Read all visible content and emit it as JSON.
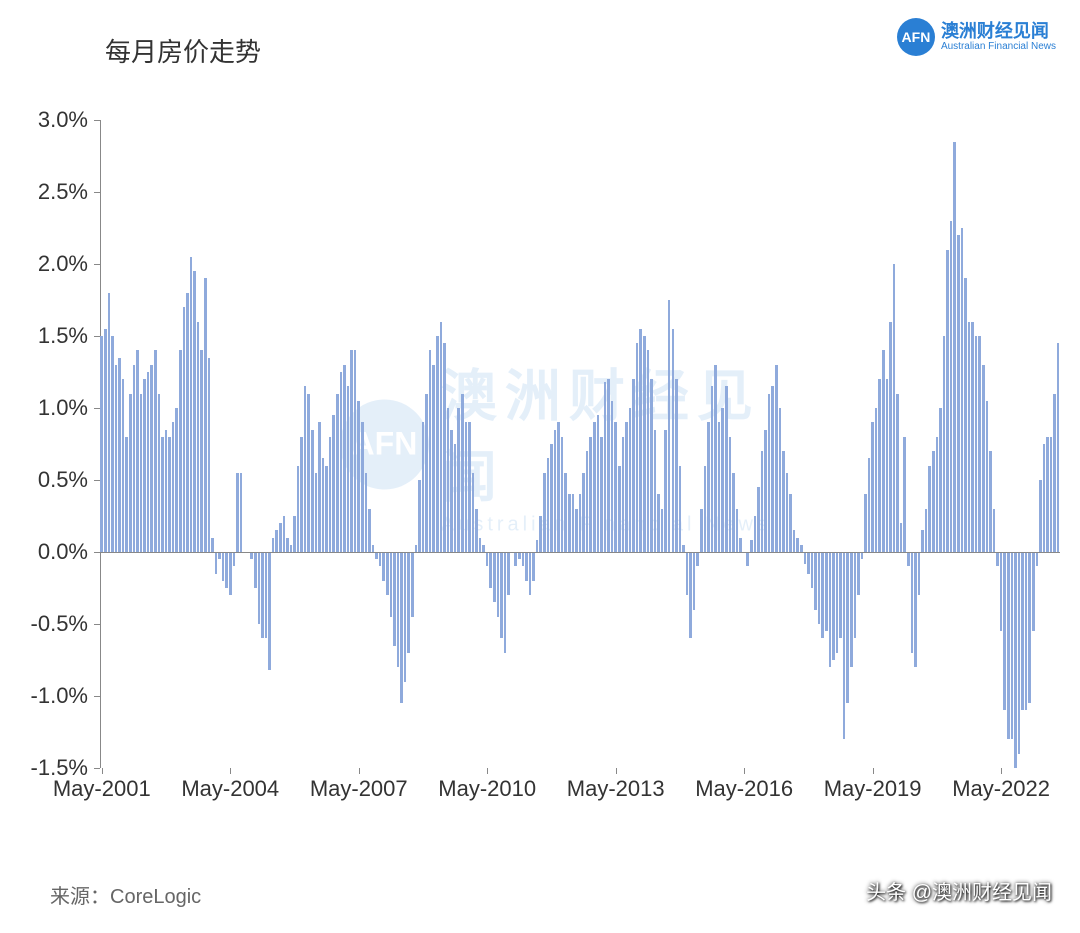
{
  "title": "每月房价走势",
  "logo": {
    "badge": "AFN",
    "cn": "澳洲财经见闻",
    "en": "Australian Financial News"
  },
  "source": "来源：CoreLogic",
  "credit": "头条 @澳洲财经见闻",
  "watermark": {
    "badge": "AFN",
    "cn": "澳洲财经见闻",
    "en": "Australian Financial News"
  },
  "chart": {
    "type": "bar",
    "bar_color": "#8faadc",
    "background_color": "#ffffff",
    "axis_color": "#888888",
    "text_color": "#333333",
    "title_fontsize": 26,
    "tick_fontsize": 22,
    "ylim": [
      -1.5,
      3.0
    ],
    "ytick_step": 0.5,
    "ytick_suffix": "%",
    "yticks": [
      "-1.5%",
      "-1.0%",
      "-0.5%",
      "0.0%",
      "0.5%",
      "1.0%",
      "1.5%",
      "2.0%",
      "2.5%",
      "3.0%"
    ],
    "x_start_year": 2001,
    "x_start_month": 5,
    "x_labels": [
      "May-2001",
      "May-2004",
      "May-2007",
      "May-2010",
      "May-2013",
      "May-2016",
      "May-2019",
      "May-2022"
    ],
    "x_label_every_months": 36,
    "bar_gap_ratio": 0.28,
    "values": [
      1.5,
      1.55,
      1.8,
      1.5,
      1.3,
      1.35,
      1.2,
      0.8,
      1.1,
      1.3,
      1.4,
      1.1,
      1.2,
      1.25,
      1.3,
      1.4,
      1.1,
      0.8,
      0.85,
      0.8,
      0.9,
      1.0,
      1.4,
      1.7,
      1.8,
      2.05,
      1.95,
      1.6,
      1.4,
      1.9,
      1.35,
      0.1,
      -0.15,
      -0.05,
      -0.2,
      -0.25,
      -0.3,
      -0.1,
      0.55,
      0.55,
      0.0,
      0.0,
      -0.05,
      -0.25,
      -0.5,
      -0.6,
      -0.6,
      -0.82,
      0.1,
      0.15,
      0.2,
      0.25,
      0.1,
      0.05,
      0.25,
      0.6,
      0.8,
      1.15,
      1.1,
      0.85,
      0.55,
      0.9,
      0.65,
      0.6,
      0.8,
      0.95,
      1.1,
      1.25,
      1.3,
      1.15,
      1.4,
      1.4,
      1.05,
      0.9,
      0.55,
      0.3,
      0.05,
      -0.05,
      -0.1,
      -0.2,
      -0.3,
      -0.45,
      -0.65,
      -0.8,
      -1.05,
      -0.9,
      -0.7,
      -0.45,
      0.05,
      0.5,
      0.9,
      1.1,
      1.4,
      1.3,
      1.5,
      1.6,
      1.45,
      1.0,
      0.85,
      0.75,
      1.0,
      1.1,
      0.9,
      0.9,
      0.55,
      0.3,
      0.1,
      0.05,
      -0.1,
      -0.25,
      -0.35,
      -0.45,
      -0.6,
      -0.7,
      -0.3,
      0.0,
      -0.1,
      -0.05,
      -0.1,
      -0.2,
      -0.3,
      -0.2,
      0.08,
      0.25,
      0.55,
      0.65,
      0.75,
      0.85,
      0.9,
      0.8,
      0.55,
      0.4,
      0.4,
      0.3,
      0.4,
      0.55,
      0.7,
      0.8,
      0.9,
      0.95,
      0.8,
      1.18,
      1.2,
      1.05,
      0.9,
      0.6,
      0.8,
      0.9,
      1.0,
      1.2,
      1.45,
      1.55,
      1.5,
      1.4,
      1.2,
      0.85,
      0.4,
      0.3,
      0.85,
      1.75,
      1.55,
      1.2,
      0.6,
      0.05,
      -0.3,
      -0.6,
      -0.4,
      -0.1,
      0.3,
      0.6,
      0.9,
      1.15,
      1.3,
      0.9,
      1.0,
      1.15,
      0.8,
      0.55,
      0.3,
      0.1,
      0.0,
      -0.1,
      0.08,
      0.25,
      0.45,
      0.7,
      0.85,
      1.1,
      1.15,
      1.3,
      1.0,
      0.7,
      0.55,
      0.4,
      0.15,
      0.1,
      0.05,
      -0.08,
      -0.15,
      -0.25,
      -0.4,
      -0.5,
      -0.6,
      -0.55,
      -0.8,
      -0.75,
      -0.7,
      -0.6,
      -1.3,
      -1.05,
      -0.8,
      -0.6,
      -0.3,
      -0.05,
      0.4,
      0.65,
      0.9,
      1.0,
      1.2,
      1.4,
      1.2,
      1.6,
      2.0,
      1.1,
      0.2,
      0.8,
      -0.1,
      -0.7,
      -0.8,
      -0.3,
      0.15,
      0.3,
      0.6,
      0.7,
      0.8,
      1.0,
      1.5,
      2.1,
      2.3,
      2.85,
      2.2,
      2.25,
      1.9,
      1.6,
      1.6,
      1.5,
      1.5,
      1.3,
      1.05,
      0.7,
      0.3,
      -0.1,
      -0.55,
      -1.1,
      -1.3,
      -1.3,
      -1.5,
      -1.4,
      -1.1,
      -1.1,
      -1.05,
      -0.55,
      -0.1,
      0.5,
      0.75,
      0.8,
      0.8,
      1.1,
      1.45
    ]
  }
}
